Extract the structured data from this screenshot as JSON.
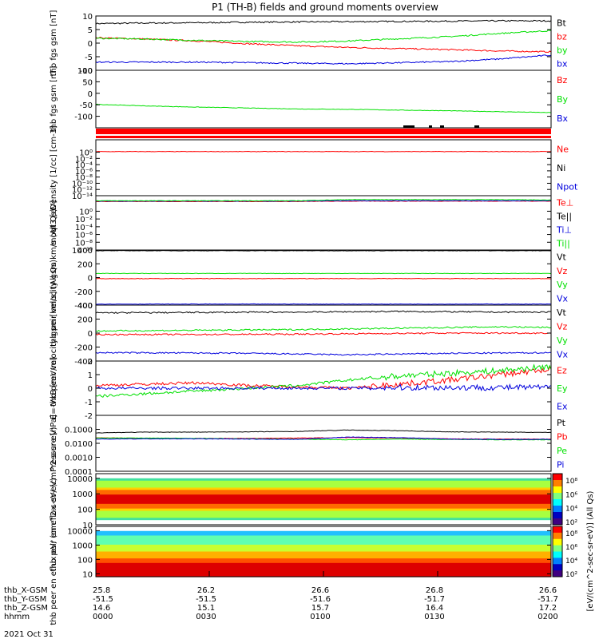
{
  "title": "P1 (TH-B) fields and ground moments overview",
  "colors": {
    "black": "#000000",
    "red": "#ff0000",
    "green": "#00e000",
    "blue": "#0000dd"
  },
  "date_label": "2021 Oct 31",
  "footer_rows": [
    {
      "label": "thb_X-GSM",
      "values": [
        "25.8",
        "26.2",
        "26.6",
        "26.8",
        "26.6"
      ]
    },
    {
      "label": "thb_Y-GSM",
      "values": [
        "-51.5",
        "-51.5",
        "-51.6",
        "-51.7",
        "-51.7"
      ]
    },
    {
      "label": "thb_Z-GSM",
      "values": [
        "14.6",
        "15.1",
        "15.7",
        "16.4",
        "17.2"
      ]
    },
    {
      "label": "hhmm",
      "values": [
        "0000",
        "0030",
        "0100",
        "0130",
        "0200"
      ]
    }
  ],
  "colorbar": {
    "label": "[eV/(cm^2-sec-sr-eV)] (All Qs)",
    "ticks_top": [
      "10⁸",
      "10⁶",
      "10⁴",
      "10²"
    ],
    "ticks_bottom": [
      "10⁸",
      "10⁶",
      "10⁴",
      "10²"
    ]
  },
  "chart_data": [
    {
      "type": "line",
      "ylabel": "thb fgs gsm [nT]",
      "ylim": [
        -10,
        10
      ],
      "ticks": [
        "10",
        "5",
        "0",
        "-5",
        "-10"
      ],
      "tick_values": [
        10,
        5,
        0,
        -5,
        -10
      ],
      "series": [
        {
          "name": "Bt",
          "color": "black",
          "values": [
            7.2,
            7.4,
            7.5,
            7.7,
            7.8,
            7.9,
            8.0,
            8.1,
            8.2,
            8.2
          ]
        },
        {
          "name": "bz",
          "color": "red",
          "values": [
            2.0,
            1.5,
            0.8,
            -0.2,
            -1.0,
            -1.6,
            -2.0,
            -2.4,
            -2.9,
            -3.2
          ]
        },
        {
          "name": "by",
          "color": "green",
          "values": [
            1.8,
            1.5,
            1.0,
            0.6,
            0.4,
            0.8,
            1.6,
            2.4,
            3.6,
            4.6
          ]
        },
        {
          "name": "bx",
          "color": "blue",
          "values": [
            -7.0,
            -7.0,
            -7.0,
            -7.2,
            -7.4,
            -7.6,
            -7.2,
            -6.8,
            -5.8,
            -4.4
          ]
        }
      ]
    },
    {
      "type": "line",
      "ylabel": "thb fgs gsm [nT]",
      "ylim": [
        -150,
        100
      ],
      "ticks": [
        "100",
        "50",
        "0",
        "-50",
        "-100"
      ],
      "tick_values": [
        100,
        50,
        0,
        -50,
        -100
      ],
      "series": [
        {
          "name": "Bz",
          "color": "red",
          "values": []
        },
        {
          "name": "By",
          "color": "green",
          "values": [
            -48,
            -55,
            -60,
            -64,
            -68,
            -70,
            -73,
            -76,
            -80,
            -84
          ]
        },
        {
          "name": "Bx",
          "color": "blue",
          "values": []
        }
      ]
    },
    {
      "type": "line",
      "ylabel": "Density [1/cc] [cm-3]",
      "ylim": [
        -14,
        4
      ],
      "ticks": [
        "10⁰",
        "10⁻²",
        "10⁻⁴",
        "10⁻⁶",
        "10⁻⁸",
        "10⁻¹⁰",
        "10⁻¹²",
        "10⁻¹⁴"
      ],
      "tick_values": [
        0,
        -2,
        -4,
        -6,
        -8,
        -10,
        -12,
        -14
      ],
      "series": [
        {
          "name": "Ne",
          "color": "red",
          "values": [
            0.2,
            0.2,
            0.2,
            0.2,
            0.2,
            0.2,
            0.2,
            0.2,
            0.2,
            0.2
          ]
        },
        {
          "name": "Ni",
          "color": "black",
          "values": []
        },
        {
          "name": "Npot",
          "color": "blue",
          "values": []
        }
      ]
    },
    {
      "type": "line",
      "ylabel": "moqt3 [eV]",
      "ylim": [
        -10,
        4
      ],
      "ticks": [
        "10⁰",
        "10⁻²",
        "10⁻⁴",
        "10⁻⁶",
        "10⁻⁸",
        "10⁻¹⁰"
      ],
      "tick_values": [
        0,
        -2,
        -4,
        -6,
        -8,
        -10
      ],
      "series": [
        {
          "name": "Te⊥",
          "color": "red",
          "values": [
            2.5,
            2.5,
            2.5,
            2.5,
            2.5,
            2.6,
            2.6,
            2.6,
            2.6,
            2.6
          ]
        },
        {
          "name": "Te||",
          "color": "black",
          "values": []
        },
        {
          "name": "Ti⊥",
          "color": "blue",
          "values": [
            2.6,
            2.6,
            2.6,
            2.6,
            2.6,
            2.7,
            2.7,
            2.7,
            2.7,
            2.7
          ]
        },
        {
          "name": "Ti||",
          "color": "green",
          "values": [
            2.7,
            2.7,
            2.7,
            2.7,
            2.7,
            3.0,
            3.0,
            3.0,
            3.0,
            2.9
          ]
        }
      ]
    },
    {
      "type": "line",
      "ylabel": "thb peir velocity gsm km/s (All Qs)",
      "ylim": [
        -400,
        400
      ],
      "ticks": [
        "400",
        "200",
        "0",
        "-200",
        "-400"
      ],
      "tick_values": [
        400,
        200,
        0,
        -200,
        -400
      ],
      "series": [
        {
          "name": "Vt",
          "color": "black",
          "values": [
            390,
            390,
            390,
            390,
            390,
            390,
            390,
            390,
            390,
            390
          ]
        },
        {
          "name": "Vz",
          "color": "red",
          "values": [
            -15,
            -15,
            -15,
            -15,
            -15,
            -15,
            -15,
            -15,
            -15,
            -15
          ]
        },
        {
          "name": "Vy",
          "color": "green",
          "values": [
            60,
            60,
            60,
            60,
            60,
            60,
            60,
            60,
            60,
            60
          ]
        },
        {
          "name": "Vx",
          "color": "blue",
          "values": [
            -385,
            -385,
            -385,
            -385,
            -385,
            -385,
            -385,
            -385,
            -385,
            -385
          ]
        }
      ]
    },
    {
      "type": "line",
      "ylabel": "thb peer velocity gsm [km/s] (All Qs)",
      "ylim": [
        -400,
        400
      ],
      "ticks": [
        "400",
        "200",
        "0",
        "-200",
        "-400"
      ],
      "tick_values": [
        400,
        200,
        0,
        -200,
        -400
      ],
      "series": [
        {
          "name": "Vt",
          "color": "black",
          "values": [
            290,
            292,
            295,
            298,
            300,
            305,
            310,
            305,
            300,
            300
          ]
        },
        {
          "name": "Vz",
          "color": "red",
          "values": [
            -20,
            -20,
            -20,
            -18,
            -15,
            -10,
            -5,
            0,
            0,
            0
          ]
        },
        {
          "name": "Vy",
          "color": "green",
          "values": [
            30,
            35,
            40,
            45,
            50,
            60,
            70,
            80,
            90,
            80
          ]
        },
        {
          "name": "Vx",
          "color": "blue",
          "values": [
            -280,
            -282,
            -285,
            -290,
            -300,
            -310,
            -300,
            -290,
            -285,
            -280
          ]
        }
      ]
    },
    {
      "type": "line",
      "ylabel": "E=-VxB [mV/m]",
      "ylim": [
        -2,
        2
      ],
      "ticks": [
        "2",
        "1",
        "0",
        "-1",
        "-2"
      ],
      "tick_values": [
        2,
        1,
        0,
        -1,
        -2
      ],
      "series": [
        {
          "name": "Ez",
          "color": "red",
          "values": [
            0.2,
            0.3,
            0.4,
            0.2,
            0.1,
            0.0,
            0.3,
            0.6,
            1.0,
            1.4
          ]
        },
        {
          "name": "Ey",
          "color": "green",
          "values": [
            -0.6,
            -0.4,
            -0.2,
            0.0,
            0.2,
            0.6,
            0.9,
            1.1,
            1.3,
            1.6
          ]
        },
        {
          "name": "Ex",
          "color": "blue",
          "values": [
            0.0,
            0.0,
            0.0,
            0.0,
            0.0,
            0.0,
            0.05,
            0.05,
            0.05,
            0.05
          ]
        }
      ]
    },
    {
      "type": "line",
      "ylabel": "Pressure [nPa]",
      "ylim": [
        -4,
        0
      ],
      "ticks": [
        "0.1000",
        "0.0100",
        "0.0010",
        "0.0001"
      ],
      "tick_values": [
        -1,
        -2,
        -3,
        -4
      ],
      "series": [
        {
          "name": "Pt",
          "color": "black",
          "values": [
            -1.25,
            -1.2,
            -1.2,
            -1.18,
            -1.15,
            -1.05,
            -1.1,
            -1.18,
            -1.2,
            -1.22
          ]
        },
        {
          "name": "Pb",
          "color": "red",
          "values": [
            -1.6,
            -1.65,
            -1.65,
            -1.65,
            -1.62,
            -1.6,
            -1.62,
            -1.68,
            -1.7,
            -1.7
          ]
        },
        {
          "name": "Pe",
          "color": "green",
          "values": [
            -1.62,
            -1.62,
            -1.65,
            -1.68,
            -1.7,
            -1.75,
            -1.7,
            -1.72,
            -1.75,
            -1.75
          ]
        },
        {
          "name": "Pi",
          "color": "blue",
          "values": [
            -1.7,
            -1.68,
            -1.68,
            -1.7,
            -1.72,
            -1.55,
            -1.6,
            -1.7,
            -1.72,
            -1.72
          ]
        }
      ]
    },
    {
      "type": "heatmap",
      "ylabel": "thb peir en eflux eV/ (cm^2-s-sr-eV)",
      "ylim": [
        1,
        4.3
      ],
      "ticks": [
        "10000",
        "1000",
        "100",
        "10"
      ],
      "tick_values": [
        4,
        3,
        2,
        1
      ]
    },
    {
      "type": "heatmap",
      "ylabel": "thb peer en eflux eV/ (cm^2-s-sr-eV)",
      "ylim": [
        0.8,
        4.3
      ],
      "ticks": [
        "10000",
        "1000",
        "100",
        "10"
      ],
      "tick_values": [
        4,
        3,
        2,
        1
      ]
    }
  ]
}
